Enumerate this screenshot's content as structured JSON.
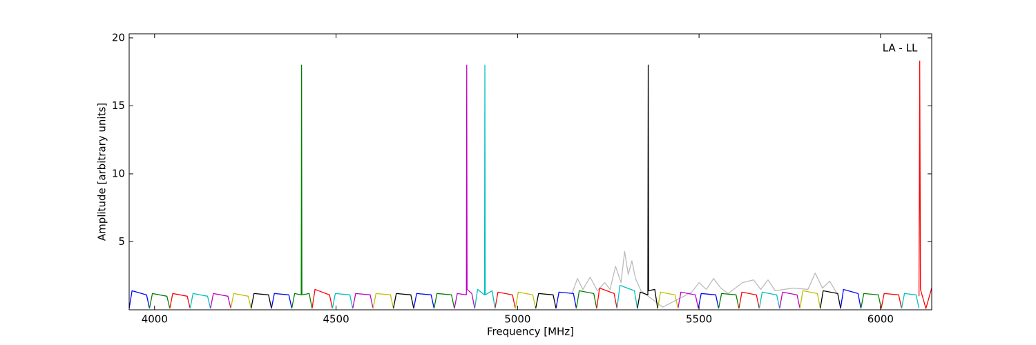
{
  "chart_data": {
    "type": "line",
    "x_label": "Frequency [MHz]",
    "y_label": "Amplitude [arbitrary units]",
    "annotation": "LA - LL",
    "xlim": [
      3930,
      6141
    ],
    "ylim": [
      0,
      20.3
    ],
    "xticks": [
      4000,
      4500,
      5000,
      5500,
      6000
    ],
    "yticks": [
      5,
      10,
      15,
      20
    ],
    "grid": false,
    "series": [
      {
        "color": "#bbbbbb",
        "x": [
          5150,
          5165,
          5180,
          5200,
          5220,
          5240,
          5255,
          5270,
          5285,
          5295,
          5305,
          5315,
          5325,
          5340,
          5400,
          5480,
          5500,
          5520,
          5540,
          5560,
          5580,
          5620,
          5650,
          5670,
          5690,
          5710,
          5760,
          5800,
          5820,
          5840,
          5860,
          5880
        ],
        "values": [
          1.2,
          2.3,
          1.5,
          2.4,
          1.4,
          2.0,
          1.5,
          3.2,
          2.0,
          4.3,
          2.6,
          3.6,
          2.3,
          1.4,
          0.2,
          1.3,
          2.0,
          1.5,
          2.3,
          1.6,
          1.2,
          2.0,
          2.2,
          1.5,
          2.2,
          1.4,
          1.6,
          1.5,
          2.7,
          1.6,
          2.1,
          1.2
        ]
      },
      {
        "color": "#0000ff",
        "x": [
          3930,
          3938,
          3978,
          3986,
          null,
          4322,
          4330,
          4370,
          4378,
          null,
          4714,
          4722,
          4762,
          4770,
          null,
          5106,
          5114,
          5154,
          5162,
          null,
          5498,
          5506,
          5546,
          5554,
          null,
          5890,
          5898,
          5938,
          5946
        ],
        "values": [
          0.1,
          1.4,
          1.1,
          0.1,
          null,
          0.1,
          1.2,
          1.1,
          0.1,
          null,
          0.1,
          1.2,
          1.1,
          0.1,
          null,
          0.1,
          1.3,
          1.2,
          0.1,
          null,
          0.1,
          1.2,
          1.1,
          0.1,
          null,
          0.1,
          1.5,
          1.2,
          0.1
        ]
      },
      {
        "color": "#008000",
        "x": [
          3986,
          3994,
          4034,
          4042,
          null,
          4378,
          4386,
          4404,
          4405,
          4406,
          4426,
          4434,
          null,
          4770,
          4778,
          4818,
          4826,
          null,
          5162,
          5170,
          5210,
          5218,
          null,
          5554,
          5562,
          5602,
          5610,
          null,
          5946,
          5954,
          5994,
          6002
        ],
        "values": [
          0.1,
          1.2,
          1.0,
          0.1,
          null,
          0.1,
          1.2,
          1.1,
          18,
          1.1,
          1.2,
          0.1,
          null,
          0.1,
          1.2,
          1.1,
          0.1,
          null,
          0.1,
          1.4,
          1.2,
          0.1,
          null,
          0.1,
          1.2,
          1.1,
          0.1,
          null,
          0.1,
          1.2,
          1.1,
          0.1
        ]
      },
      {
        "color": "#ff0000",
        "x": [
          4042,
          4050,
          4090,
          4098,
          null,
          4434,
          4442,
          4482,
          4490,
          null,
          4938,
          4946,
          4986,
          4994,
          null,
          5218,
          5226,
          5266,
          5274,
          null,
          5610,
          5618,
          5658,
          5666,
          null,
          6002,
          6010,
          6050,
          6058,
          null,
          6106,
          6108,
          6110,
          6125,
          6141
        ],
        "values": [
          0.1,
          1.2,
          1.0,
          0.1,
          null,
          0.1,
          1.5,
          1.1,
          0.1,
          null,
          0.1,
          1.3,
          1.1,
          0.1,
          null,
          0.1,
          1.6,
          1.2,
          0.1,
          null,
          0.1,
          1.3,
          1.1,
          0.1,
          null,
          0.1,
          1.2,
          1.1,
          0.1,
          null,
          1.0,
          18.3,
          1.5,
          0.1,
          1.6
        ]
      },
      {
        "color": "#00bfbf",
        "x": [
          4098,
          4106,
          4146,
          4154,
          null,
          4490,
          4498,
          4538,
          4546,
          null,
          4882,
          4890,
          4909,
          4910,
          4911,
          4930,
          4938,
          null,
          5274,
          5282,
          5322,
          5330,
          null,
          5666,
          5674,
          5714,
          5722,
          null,
          6058,
          6066,
          6098,
          6106
        ],
        "values": [
          0.1,
          1.2,
          1.0,
          0.1,
          null,
          0.1,
          1.2,
          1.1,
          0.1,
          null,
          0.1,
          1.5,
          1.1,
          18,
          1.1,
          1.4,
          0.1,
          null,
          0.1,
          1.8,
          1.4,
          0.1,
          null,
          0.1,
          1.3,
          1.1,
          0.1,
          null,
          0.1,
          1.2,
          1.1,
          0.1
        ]
      },
      {
        "color": "#bf00bf",
        "x": [
          4154,
          4162,
          4202,
          4210,
          null,
          4546,
          4554,
          4594,
          4602,
          null,
          4826,
          4834,
          4859,
          4860,
          4861,
          4874,
          4882,
          null,
          5442,
          5450,
          5490,
          5498,
          null,
          5722,
          5730,
          5770,
          5778
        ],
        "values": [
          0.1,
          1.2,
          1.0,
          0.1,
          null,
          0.1,
          1.2,
          1.1,
          0.1,
          null,
          0.1,
          1.2,
          1.1,
          18,
          1.5,
          1.2,
          0.1,
          null,
          0.1,
          1.3,
          1.1,
          0.1,
          null,
          0.1,
          1.3,
          1.1,
          0.1
        ]
      },
      {
        "color": "#bfbf00",
        "x": [
          4210,
          4218,
          4258,
          4266,
          null,
          4602,
          4610,
          4650,
          4658,
          null,
          4994,
          5002,
          5042,
          5050,
          null,
          5386,
          5394,
          5434,
          5442,
          null,
          5778,
          5786,
          5826,
          5834
        ],
        "values": [
          0.1,
          1.2,
          1.0,
          0.1,
          null,
          0.1,
          1.2,
          1.1,
          0.1,
          null,
          0.1,
          1.3,
          1.1,
          0.1,
          null,
          0.1,
          1.3,
          1.1,
          0.1,
          null,
          0.1,
          1.4,
          1.2,
          0.1
        ]
      },
      {
        "color": "#000000",
        "x": [
          4266,
          4274,
          4314,
          4322,
          null,
          4658,
          4666,
          4706,
          4714,
          null,
          5050,
          5058,
          5098,
          5106,
          null,
          5330,
          5338,
          5359,
          5360,
          5361,
          5378,
          5386,
          null,
          5834,
          5842,
          5882,
          5890
        ],
        "values": [
          0.1,
          1.2,
          1.1,
          0.1,
          null,
          0.1,
          1.2,
          1.1,
          0.1,
          null,
          0.1,
          1.2,
          1.1,
          0.1,
          null,
          0.1,
          1.3,
          1.1,
          18,
          1.4,
          1.5,
          0.1,
          null,
          0.1,
          1.4,
          1.2,
          0.1
        ]
      }
    ]
  }
}
